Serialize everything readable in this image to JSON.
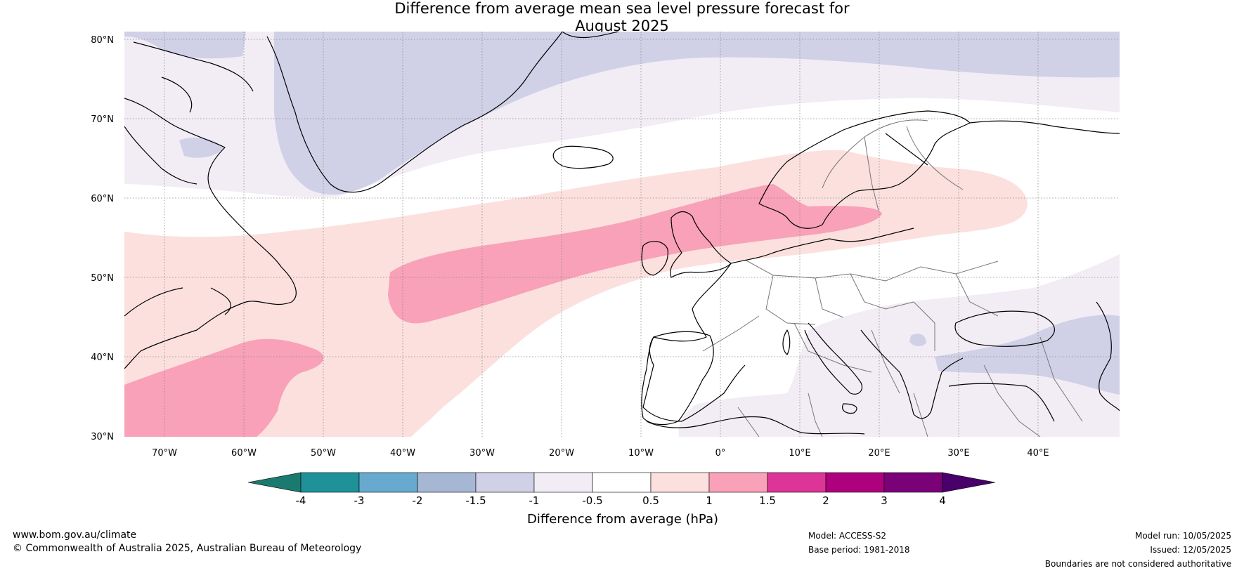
{
  "title": {
    "line1": "Difference from average mean sea level pressure forecast for",
    "line2": "August 2025"
  },
  "map": {
    "lat_labels": [
      "80°N",
      "70°N",
      "60°N",
      "50°N",
      "40°N",
      "30°N"
    ],
    "lon_labels": [
      "70°W",
      "60°W",
      "50°W",
      "40°W",
      "30°W",
      "20°W",
      "10°W",
      "0°",
      "10°E",
      "20°E",
      "30°E",
      "40°E"
    ],
    "lon_range": [
      -75,
      50
    ],
    "lat_range": [
      30,
      81
    ],
    "colors": {
      "neg_1_5_to_1": "#d0d1e6",
      "neg_1_to_0_5": "#f2ecf5",
      "pos_0_5_to_1": "#fbe0de",
      "pos_1_to_1_5": "#f8a1b8",
      "land_border": "#777777",
      "coast": "#000000"
    }
  },
  "colorbar": {
    "ticks": [
      "-4",
      "-3",
      "-2",
      "-1.5",
      "-1",
      "-0.5",
      "0.5",
      "1",
      "1.5",
      "2",
      "3",
      "4"
    ],
    "colors": [
      "#1b7a70",
      "#1f9198",
      "#67a9cf",
      "#a6b7d4",
      "#d0d1e6",
      "#f2ecf5",
      "#ffffff",
      "#fbe0de",
      "#f8a1b8",
      "#dd3497",
      "#ae017e",
      "#7a0177",
      "#49006a"
    ],
    "label": "Difference from average (hPa)"
  },
  "footer": {
    "website": "www.bom.gov.au/climate",
    "copyright": "© Commonwealth of Australia 2025, Australian Bureau of Meteorology",
    "model": "Model: ACCESS-S2",
    "base_period": "Base period: 1981-2018",
    "model_run": "Model run: 10/05/2025",
    "issued": "Issued: 12/05/2025",
    "disclaimer": "Boundaries are not considered authoritative"
  }
}
